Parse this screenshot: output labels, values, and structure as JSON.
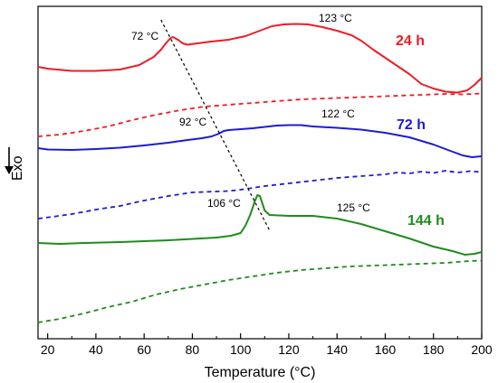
{
  "chart_data": {
    "type": "line",
    "title": "",
    "xlabel": "Temperature (°C)",
    "ylabel": "Exo",
    "xlim": [
      16,
      200
    ],
    "x_ticks": [
      20,
      40,
      60,
      80,
      100,
      120,
      140,
      160,
      180,
      200
    ],
    "y_ticks_shown": false,
    "grid": false,
    "exo_arrow": "down",
    "series": [
      {
        "name": "24 h",
        "group": "24 h",
        "style": "solid",
        "color": "#ee1c25",
        "points": [
          [
            16,
            74
          ],
          [
            20,
            76
          ],
          [
            30,
            78.5
          ],
          [
            40,
            78.5
          ],
          [
            50,
            77
          ],
          [
            58,
            72
          ],
          [
            64,
            63
          ],
          [
            67,
            55
          ],
          [
            69,
            48
          ],
          [
            71,
            42
          ],
          [
            72,
            41
          ],
          [
            74,
            44
          ],
          [
            76,
            48
          ],
          [
            78,
            49.5
          ],
          [
            82,
            48
          ],
          [
            88,
            46
          ],
          [
            95,
            44
          ],
          [
            102,
            40
          ],
          [
            108,
            34
          ],
          [
            113,
            29
          ],
          [
            118,
            27
          ],
          [
            123,
            26.5
          ],
          [
            128,
            27
          ],
          [
            134,
            30
          ],
          [
            140,
            34
          ],
          [
            146,
            39
          ],
          [
            150,
            45
          ],
          [
            155,
            55
          ],
          [
            160,
            64
          ],
          [
            165,
            73
          ],
          [
            170,
            82
          ],
          [
            175,
            93
          ],
          [
            180,
            98
          ],
          [
            185,
            101.5
          ],
          [
            190,
            102.5
          ],
          [
            194,
            100
          ],
          [
            197,
            94
          ],
          [
            200,
            86
          ]
        ]
      },
      {
        "name": "",
        "group": "24 h",
        "style": "dashed",
        "color": "#ee1c25",
        "points": [
          [
            16,
            151
          ],
          [
            25,
            149
          ],
          [
            35,
            145
          ],
          [
            45,
            140
          ],
          [
            55,
            133
          ],
          [
            65,
            127
          ],
          [
            75,
            122
          ],
          [
            85,
            118
          ],
          [
            95,
            116
          ],
          [
            105,
            114
          ],
          [
            115,
            112
          ],
          [
            125,
            110
          ],
          [
            135,
            109
          ],
          [
            145,
            108
          ],
          [
            155,
            107
          ],
          [
            165,
            106
          ],
          [
            175,
            105
          ],
          [
            185,
            104
          ],
          [
            192,
            104.5
          ],
          [
            200,
            103.5
          ]
        ]
      },
      {
        "name": "72 h",
        "group": "72 h",
        "style": "solid",
        "color": "#1c1cd6",
        "points": [
          [
            16,
            164
          ],
          [
            20,
            165.5
          ],
          [
            30,
            166
          ],
          [
            40,
            165
          ],
          [
            50,
            163.5
          ],
          [
            60,
            161
          ],
          [
            70,
            158
          ],
          [
            78,
            155
          ],
          [
            84,
            153
          ],
          [
            88,
            151
          ],
          [
            91,
            148
          ],
          [
            93,
            145
          ],
          [
            95,
            144
          ],
          [
            100,
            143
          ],
          [
            105,
            142
          ],
          [
            110,
            140.5
          ],
          [
            115,
            139
          ],
          [
            120,
            138.5
          ],
          [
            125,
            138.5
          ],
          [
            130,
            140
          ],
          [
            140,
            141.5
          ],
          [
            150,
            143.5
          ],
          [
            160,
            147
          ],
          [
            170,
            152
          ],
          [
            180,
            160
          ],
          [
            188,
            168
          ],
          [
            192,
            172
          ],
          [
            196,
            174
          ],
          [
            200,
            173
          ]
        ]
      },
      {
        "name": "",
        "group": "72 h",
        "style": "dashed",
        "color": "#1c1cd6",
        "points": [
          [
            16,
            242
          ],
          [
            22,
            240
          ],
          [
            30,
            237
          ],
          [
            40,
            232
          ],
          [
            50,
            228
          ],
          [
            60,
            222
          ],
          [
            70,
            217
          ],
          [
            80,
            213
          ],
          [
            90,
            212
          ],
          [
            95,
            211.5
          ],
          [
            100,
            210
          ],
          [
            110,
            206
          ],
          [
            120,
            203
          ],
          [
            130,
            200
          ],
          [
            140,
            197
          ],
          [
            150,
            195
          ],
          [
            160,
            193
          ],
          [
            165,
            191
          ],
          [
            170,
            192
          ],
          [
            175,
            190
          ],
          [
            180,
            191.5
          ],
          [
            185,
            189
          ],
          [
            190,
            191
          ],
          [
            195,
            189.5
          ],
          [
            200,
            190.5
          ]
        ]
      },
      {
        "name": "144 h",
        "group": "144 h",
        "style": "solid",
        "color": "#1e8c1e",
        "points": [
          [
            16,
            269
          ],
          [
            25,
            270
          ],
          [
            35,
            269
          ],
          [
            50,
            268
          ],
          [
            70,
            266
          ],
          [
            90,
            263
          ],
          [
            96,
            261
          ],
          [
            100,
            258
          ],
          [
            102,
            250
          ],
          [
            104,
            238
          ],
          [
            106,
            222
          ],
          [
            107,
            216
          ],
          [
            108,
            217
          ],
          [
            109,
            225
          ],
          [
            110,
            233
          ],
          [
            112,
            238
          ],
          [
            120,
            239
          ],
          [
            130,
            239
          ],
          [
            140,
            242
          ],
          [
            150,
            248
          ],
          [
            160,
            256
          ],
          [
            170,
            264
          ],
          [
            180,
            273
          ],
          [
            188,
            278
          ],
          [
            193,
            282
          ],
          [
            197,
            281
          ],
          [
            200,
            279
          ]
        ]
      },
      {
        "name": "",
        "group": "144 h",
        "style": "dashed",
        "color": "#1e8c1e",
        "points": [
          [
            16,
            357
          ],
          [
            25,
            353
          ],
          [
            35,
            347
          ],
          [
            45,
            340
          ],
          [
            55,
            334
          ],
          [
            65,
            326
          ],
          [
            75,
            320
          ],
          [
            85,
            315
          ],
          [
            95,
            310
          ],
          [
            105,
            306
          ],
          [
            115,
            302
          ],
          [
            125,
            299
          ],
          [
            135,
            297
          ],
          [
            145,
            295
          ],
          [
            155,
            294
          ],
          [
            165,
            293
          ],
          [
            175,
            292
          ],
          [
            185,
            291
          ],
          [
            195,
            289
          ],
          [
            200,
            288.5
          ]
        ]
      },
      {
        "name": "",
        "group": "peak-trend",
        "style": "dotted",
        "color": "#000000",
        "points": [
          [
            67,
            22
          ],
          [
            112,
            255
          ]
        ]
      }
    ],
    "annotations": [
      {
        "text": "72 °C",
        "x": 63,
        "y_row": "upper"
      },
      {
        "text": "123 °C",
        "x": 124,
        "y_row": "upper"
      },
      {
        "text": "92 °C",
        "x": 79,
        "y_row": "middle"
      },
      {
        "text": "122 °C",
        "x": 123,
        "y_row": "middle"
      },
      {
        "text": "106 °C",
        "x": 97,
        "y_row": "lower"
      },
      {
        "text": "125 °C",
        "x": 127,
        "y_row": "lower"
      }
    ],
    "series_labels": [
      {
        "text": "24 h",
        "color": "#ee1c25"
      },
      {
        "text": "72 h",
        "color": "#1c1cd6"
      },
      {
        "text": "144 h",
        "color": "#1e8c1e"
      }
    ]
  }
}
